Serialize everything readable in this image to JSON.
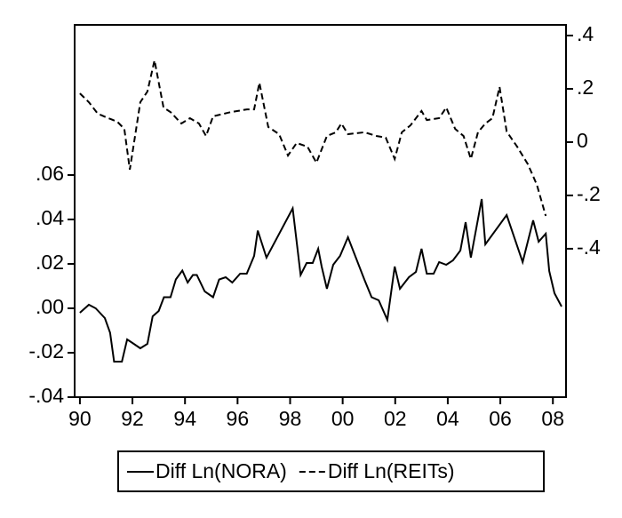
{
  "chart_data": {
    "type": "line",
    "series": [
      {
        "name": "Diff Ln(NORA)",
        "color": "#000000",
        "dash": "solid",
        "x": [
          1990.0,
          1990.34,
          1990.6,
          1990.95,
          1991.15,
          1991.3,
          1991.6,
          1991.8,
          1992.0,
          1992.3,
          1992.57,
          1992.77,
          1993.0,
          1993.2,
          1993.45,
          1993.65,
          1993.9,
          1994.1,
          1994.3,
          1994.45,
          1994.75,
          1995.07,
          1995.3,
          1995.55,
          1995.8,
          1996.1,
          1996.35,
          1996.63,
          1996.77,
          1997.1,
          1998.1,
          1998.4,
          1998.63,
          1998.86,
          1999.07,
          1999.2,
          1999.4,
          1999.64,
          1999.9,
          2000.2,
          2000.83,
          2001.1,
          2001.37,
          2001.7,
          2001.98,
          2002.18,
          2002.52,
          2002.79,
          2003.0,
          2003.2,
          2003.46,
          2003.67,
          2003.94,
          2004.2,
          2004.48,
          2004.68,
          2004.88,
          2005.29,
          2005.43,
          2006.24,
          2006.85,
          2007.25,
          2007.46,
          2007.73,
          2007.86,
          2008.06,
          2008.33
        ],
        "values": [
          -0.002,
          0.0016,
          0,
          -0.0044,
          -0.011,
          -0.024,
          -0.024,
          -0.014,
          -0.0156,
          -0.018,
          -0.016,
          -0.0036,
          -0.0012,
          0.005,
          0.005,
          0.013,
          0.017,
          0.0116,
          0.015,
          0.015,
          0.0076,
          0.005,
          0.013,
          0.014,
          0.0116,
          0.0156,
          0.0156,
          0.0236,
          0.035,
          0.0228,
          0.045,
          0.015,
          0.0204,
          0.0204,
          0.0268,
          0.0188,
          0.0088,
          0.0196,
          0.0236,
          0.032,
          0.0128,
          0.005,
          0.0036,
          -0.0052,
          0.0188,
          0.0088,
          0.014,
          0.0164,
          0.0268,
          0.0156,
          0.0156,
          0.0208,
          0.0196,
          0.0216,
          0.026,
          0.0388,
          0.0228,
          0.0492,
          0.0288,
          0.042,
          0.0208,
          0.0396,
          0.03,
          0.0336,
          0.0168,
          0.0068,
          0.0008
        ]
      },
      {
        "name": "Diff Ln(REITs)",
        "color": "#000000",
        "dash": "dashed",
        "axis": "y2",
        "x": [
          1990.0,
          1990.34,
          1990.68,
          1991.08,
          1991.42,
          1991.69,
          1991.9,
          1992.1,
          1992.3,
          1992.57,
          1992.84,
          1993.18,
          1993.45,
          1993.86,
          1994.19,
          1994.53,
          1994.8,
          1995.07,
          1995.75,
          1996.36,
          1996.63,
          1996.83,
          1997.17,
          1997.58,
          1997.92,
          1998.25,
          1998.66,
          1999.0,
          1999.4,
          1999.74,
          1999.95,
          2000.2,
          2000.83,
          2001.3,
          2001.64,
          2001.98,
          2002.25,
          2002.58,
          2003.0,
          2003.2,
          2003.67,
          2003.94,
          2004.28,
          2004.6,
          2004.88,
          2005.15,
          2005.43,
          2005.7,
          2005.97,
          2006.24,
          2006.64,
          2007.05,
          2007.39,
          2007.73
        ],
        "values": [
          0.183,
          0.15,
          0.107,
          0.09,
          0.077,
          0.05,
          -0.103,
          0.023,
          0.15,
          0.19,
          0.307,
          0.13,
          0.113,
          0.07,
          0.09,
          0.07,
          0.023,
          0.097,
          0.113,
          0.123,
          0.123,
          0.223,
          0.057,
          0.03,
          -0.05,
          -0.003,
          -0.017,
          -0.077,
          0.023,
          0.037,
          0.07,
          0.03,
          0.037,
          0.023,
          0.017,
          -0.063,
          0.037,
          0.063,
          0.117,
          0.083,
          0.09,
          0.13,
          0.05,
          0.023,
          -0.063,
          0.037,
          0.07,
          0.09,
          0.207,
          0.04,
          -0.017,
          -0.083,
          -0.16,
          -0.277
        ]
      }
    ],
    "xlim": [
      1989.8,
      2008.5
    ],
    "xticks": [
      {
        "value": 1990,
        "label": "90"
      },
      {
        "value": 1992,
        "label": "92"
      },
      {
        "value": 1994,
        "label": "94"
      },
      {
        "value": 1996,
        "label": "96"
      },
      {
        "value": 1998,
        "label": "98"
      },
      {
        "value": 2000,
        "label": "00"
      },
      {
        "value": 2002,
        "label": "02"
      },
      {
        "value": 2004,
        "label": "04"
      },
      {
        "value": 2006,
        "label": "06"
      },
      {
        "value": 2008,
        "label": "08"
      }
    ],
    "ylim": [
      -0.04,
      0.1276
    ],
    "yticks": [
      {
        "value": -0.04,
        "label": "-.04"
      },
      {
        "value": -0.02,
        "label": "-.02"
      },
      {
        "value": 0,
        "label": ".00"
      },
      {
        "value": 0.02,
        "label": ".02"
      },
      {
        "value": 0.04,
        "label": ".04"
      },
      {
        "value": 0.06,
        "label": ".06"
      }
    ],
    "y2lim": [
      -0.957,
      0.44
    ],
    "y2ticks": [
      {
        "value": -0.4,
        "label": "-.4"
      },
      {
        "value": -0.2,
        "label": "-.2"
      },
      0,
      {
        "value": 0.2,
        "label": ".2"
      },
      {
        "value": 0.4,
        "label": ".4"
      }
    ],
    "legend": "bottom"
  }
}
